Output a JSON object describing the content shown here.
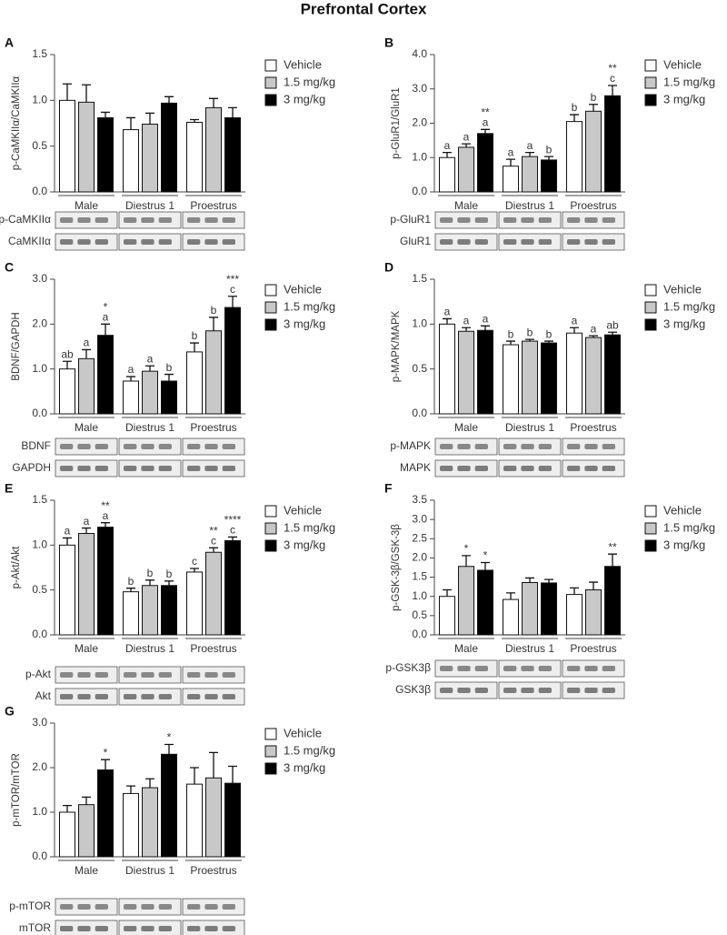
{
  "title": "Prefrontal Cortex",
  "chart_data": [
    {
      "type": "bar",
      "panel": "A",
      "ylabel": "p-CaMKIIα/CaMKIIα",
      "categories": [
        "Male",
        "Diestrus 1",
        "Proestrus"
      ],
      "ylim": [
        0,
        1.5
      ],
      "yticks": [
        {
          "value": 0,
          "label": "0.0"
        },
        0.5,
        {
          "value": 1,
          "label": "1.0"
        },
        1.5
      ],
      "series": [
        {
          "name": "Vehicle",
          "color": "#ffffff",
          "values": [
            1.0,
            0.68,
            0.76
          ],
          "errors": [
            0.18,
            0.13,
            0.03
          ],
          "annotations": [
            [],
            [],
            []
          ]
        },
        {
          "name": "1.5 mg/kg",
          "color": "#c8c8c8",
          "values": [
            0.98,
            0.74,
            0.92
          ],
          "errors": [
            0.19,
            0.12,
            0.1
          ],
          "annotations": [
            [],
            [],
            []
          ]
        },
        {
          "name": "3 mg/kg",
          "color": "#000000",
          "values": [
            0.81,
            0.97,
            0.81
          ],
          "errors": [
            0.06,
            0.07,
            0.11
          ],
          "annotations": [
            [],
            [],
            []
          ]
        }
      ],
      "blots": [
        "p-CaMKIIα",
        "CaMKIIα"
      ]
    },
    {
      "type": "bar",
      "panel": "B",
      "ylabel": "p-GluR1/GluR1",
      "categories": [
        "Male",
        "Diestrus 1",
        "Proestrus"
      ],
      "ylim": [
        0,
        4
      ],
      "yticks": [
        {
          "value": 0,
          "label": "0.0"
        },
        {
          "value": 1,
          "label": "1.0"
        },
        {
          "value": 2,
          "label": "2.0"
        },
        {
          "value": 3,
          "label": "3.0"
        },
        {
          "value": 4,
          "label": "4.0"
        }
      ],
      "series": [
        {
          "name": "Vehicle",
          "color": "#ffffff",
          "values": [
            1.0,
            0.75,
            2.05
          ],
          "errors": [
            0.15,
            0.2,
            0.2
          ],
          "annotations": [
            [
              "a"
            ],
            [
              "a"
            ],
            [
              "b"
            ]
          ]
        },
        {
          "name": "1.5 mg/kg",
          "color": "#c8c8c8",
          "values": [
            1.3,
            1.03,
            2.35
          ],
          "errors": [
            0.1,
            0.12,
            0.2
          ],
          "annotations": [
            [
              "a"
            ],
            [
              "a"
            ],
            [
              "b"
            ]
          ]
        },
        {
          "name": "3 mg/kg",
          "color": "#000000",
          "values": [
            1.7,
            0.93,
            2.8
          ],
          "errors": [
            0.12,
            0.1,
            0.3
          ],
          "annotations": [
            [
              "**",
              "a"
            ],
            [
              "b"
            ],
            [
              "**",
              "c"
            ]
          ]
        }
      ],
      "blots": [
        "p-GluR1",
        "GluR1"
      ]
    },
    {
      "type": "bar",
      "panel": "C",
      "ylabel": "BDNF/GAPDH",
      "categories": [
        "Male",
        "Diestrus 1",
        "Proestrus"
      ],
      "ylim": [
        0,
        3
      ],
      "yticks": [
        {
          "value": 0,
          "label": "0.0"
        },
        {
          "value": 1,
          "label": "1.0"
        },
        {
          "value": 2,
          "label": "2.0"
        },
        {
          "value": 3,
          "label": "3.0"
        }
      ],
      "series": [
        {
          "name": "Vehicle",
          "color": "#ffffff",
          "values": [
            1.0,
            0.73,
            1.38
          ],
          "errors": [
            0.17,
            0.1,
            0.2
          ],
          "annotations": [
            [
              "ab"
            ],
            [
              "a"
            ],
            [
              "b"
            ]
          ]
        },
        {
          "name": "1.5 mg/kg",
          "color": "#c8c8c8",
          "values": [
            1.23,
            0.95,
            1.85
          ],
          "errors": [
            0.2,
            0.12,
            0.3
          ],
          "annotations": [
            [
              "a"
            ],
            [
              "a"
            ],
            [
              "b"
            ]
          ]
        },
        {
          "name": "3 mg/kg",
          "color": "#000000",
          "values": [
            1.75,
            0.73,
            2.37
          ],
          "errors": [
            0.25,
            0.15,
            0.25
          ],
          "annotations": [
            [
              "*",
              "a"
            ],
            [
              "b"
            ],
            [
              "***",
              "c"
            ]
          ]
        }
      ],
      "blots": [
        "BDNF",
        "GAPDH"
      ]
    },
    {
      "type": "bar",
      "panel": "D",
      "ylabel": "p-MAPK/MAPK",
      "categories": [
        "Male",
        "Diestrus 1",
        "Proestrus"
      ],
      "ylim": [
        0,
        1.5
      ],
      "yticks": [
        {
          "value": 0,
          "label": "0.0"
        },
        0.5,
        {
          "value": 1,
          "label": "1.0"
        },
        1.5
      ],
      "series": [
        {
          "name": "Vehicle",
          "color": "#ffffff",
          "values": [
            1.0,
            0.77,
            0.9
          ],
          "errors": [
            0.06,
            0.04,
            0.06
          ],
          "annotations": [
            [
              "a"
            ],
            [
              "b"
            ],
            [
              "a"
            ]
          ]
        },
        {
          "name": "1.5 mg/kg",
          "color": "#c8c8c8",
          "values": [
            0.92,
            0.81,
            0.85
          ],
          "errors": [
            0.04,
            0.02,
            0.02
          ],
          "annotations": [
            [
              "a"
            ],
            [
              "b"
            ],
            [
              "a"
            ]
          ]
        },
        {
          "name": "3 mg/kg",
          "color": "#000000",
          "values": [
            0.93,
            0.79,
            0.88
          ],
          "errors": [
            0.05,
            0.02,
            0.03
          ],
          "annotations": [
            [
              "a"
            ],
            [
              "b"
            ],
            [
              "ab"
            ]
          ]
        }
      ],
      "blots": [
        "p-MAPK",
        "MAPK"
      ]
    },
    {
      "type": "bar",
      "panel": "E",
      "ylabel": "p-Akt/Akt",
      "categories": [
        "Male",
        "Diestrus 1",
        "Proestrus"
      ],
      "ylim": [
        0,
        1.5
      ],
      "yticks": [
        {
          "value": 0,
          "label": "0.0"
        },
        0.5,
        {
          "value": 1,
          "label": "1.0"
        },
        1.5
      ],
      "series": [
        {
          "name": "Vehicle",
          "color": "#ffffff",
          "values": [
            1.0,
            0.48,
            0.7
          ],
          "errors": [
            0.08,
            0.04,
            0.04
          ],
          "annotations": [
            [
              "a"
            ],
            [
              "b"
            ],
            [
              "c"
            ]
          ]
        },
        {
          "name": "1.5 mg/kg",
          "color": "#c8c8c8",
          "values": [
            1.13,
            0.55,
            0.92
          ],
          "errors": [
            0.06,
            0.06,
            0.05
          ],
          "annotations": [
            [
              "a"
            ],
            [
              "b"
            ],
            [
              "**",
              "c"
            ]
          ]
        },
        {
          "name": "3 mg/kg",
          "color": "#000000",
          "values": [
            1.2,
            0.55,
            1.05
          ],
          "errors": [
            0.05,
            0.05,
            0.04
          ],
          "annotations": [
            [
              "**",
              "a"
            ],
            [
              "b"
            ],
            [
              "****",
              "c"
            ]
          ]
        }
      ],
      "blots": [
        "p-Akt",
        "Akt"
      ]
    },
    {
      "type": "bar",
      "panel": "F",
      "ylabel": "p-GSK-3β/GSK-3β",
      "categories": [
        "Male",
        "Diestrus 1",
        "Proestrus"
      ],
      "ylim": [
        0,
        3.5
      ],
      "yticks": [
        {
          "value": 0,
          "label": "0.0"
        },
        0.5,
        {
          "value": 1,
          "label": "1.0"
        },
        1.5,
        {
          "value": 2,
          "label": "2.0"
        },
        2.5,
        {
          "value": 3,
          "label": "3.0"
        },
        3.5
      ],
      "series": [
        {
          "name": "Vehicle",
          "color": "#ffffff",
          "values": [
            1.0,
            0.92,
            1.05
          ],
          "errors": [
            0.17,
            0.17,
            0.17
          ],
          "annotations": [
            [],
            [],
            []
          ]
        },
        {
          "name": "1.5 mg/kg",
          "color": "#c8c8c8",
          "values": [
            1.78,
            1.36,
            1.17
          ],
          "errors": [
            0.28,
            0.12,
            0.2
          ],
          "annotations": [
            [
              "*"
            ],
            [],
            []
          ]
        },
        {
          "name": "3 mg/kg",
          "color": "#000000",
          "values": [
            1.68,
            1.35,
            1.78
          ],
          "errors": [
            0.2,
            0.09,
            0.32
          ],
          "annotations": [
            [
              "*"
            ],
            [],
            [
              "**"
            ]
          ]
        }
      ],
      "blots": [
        "p-GSK3β",
        "GSK3β"
      ]
    },
    {
      "type": "bar",
      "panel": "G",
      "ylabel": "p-mTOR/mTOR",
      "categories": [
        "Male",
        "Diestrus 1",
        "Proestrus"
      ],
      "ylim": [
        0,
        3
      ],
      "yticks": [
        {
          "value": 0,
          "label": "0.0"
        },
        {
          "value": 1,
          "label": "1.0"
        },
        {
          "value": 2,
          "label": "2.0"
        },
        {
          "value": 3,
          "label": "3.0"
        }
      ],
      "series": [
        {
          "name": "Vehicle",
          "color": "#ffffff",
          "values": [
            1.0,
            1.42,
            1.63
          ],
          "errors": [
            0.15,
            0.17,
            0.37
          ],
          "annotations": [
            [],
            [],
            []
          ]
        },
        {
          "name": "1.5 mg/kg",
          "color": "#c8c8c8",
          "values": [
            1.17,
            1.55,
            1.77
          ],
          "errors": [
            0.17,
            0.2,
            0.57
          ],
          "annotations": [
            [],
            [],
            []
          ]
        },
        {
          "name": "3 mg/kg",
          "color": "#000000",
          "values": [
            1.95,
            2.3,
            1.65
          ],
          "errors": [
            0.23,
            0.22,
            0.38
          ],
          "annotations": [
            [
              "*"
            ],
            [
              "*"
            ],
            []
          ]
        }
      ],
      "blots": [
        "p-mTOR",
        "mTOR"
      ]
    }
  ]
}
